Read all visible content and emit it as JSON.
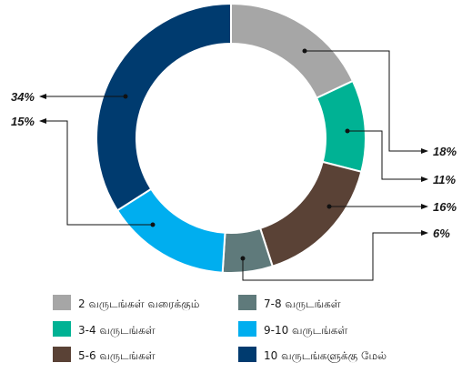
{
  "chart_data": {
    "type": "pie",
    "variant": "donut",
    "title": "",
    "legend_position": "bottom",
    "series": [
      {
        "name": "2 வருடங்கள் வரைக்கும்",
        "value": 18,
        "label": "18%",
        "color": "#a6a6a6"
      },
      {
        "name": "3-4 வருடங்கள்",
        "value": 11,
        "label": "11%",
        "color": "#00b294"
      },
      {
        "name": "5-6 வருடங்கள்",
        "value": 16,
        "label": "16%",
        "color": "#5a4236"
      },
      {
        "name": "7-8 வருடங்கள்",
        "value": 6,
        "label": "6%",
        "color": "#5f7a7b"
      },
      {
        "name": "9-10 வருடங்கள்",
        "value": 15,
        "label": "15%",
        "color": "#00aeef"
      },
      {
        "name": "10 வருடங்களுக்கு மேல்",
        "value": 34,
        "label": "34%",
        "color": "#003b6f"
      }
    ]
  }
}
